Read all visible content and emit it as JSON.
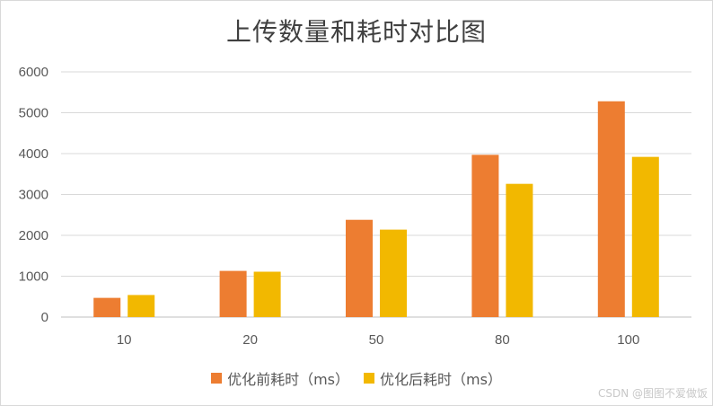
{
  "chart_data": {
    "type": "bar",
    "title": "上传数量和耗时对比图",
    "categories": [
      "10",
      "20",
      "50",
      "80",
      "100"
    ],
    "series": [
      {
        "name": "优化前耗时（ms）",
        "color": "#ed7d31",
        "values": [
          470,
          1130,
          2380,
          3970,
          5280
        ]
      },
      {
        "name": "优化后耗时（ms）",
        "color": "#f2b800",
        "values": [
          540,
          1110,
          2140,
          3260,
          3920
        ]
      }
    ],
    "ylim": [
      0,
      6000
    ],
    "yticks": [
      0,
      1000,
      2000,
      3000,
      4000,
      5000,
      6000
    ],
    "xlabel": "",
    "ylabel": "",
    "grid": true,
    "legend_position": "bottom"
  },
  "watermark": "CSDN @图图不爱做饭"
}
